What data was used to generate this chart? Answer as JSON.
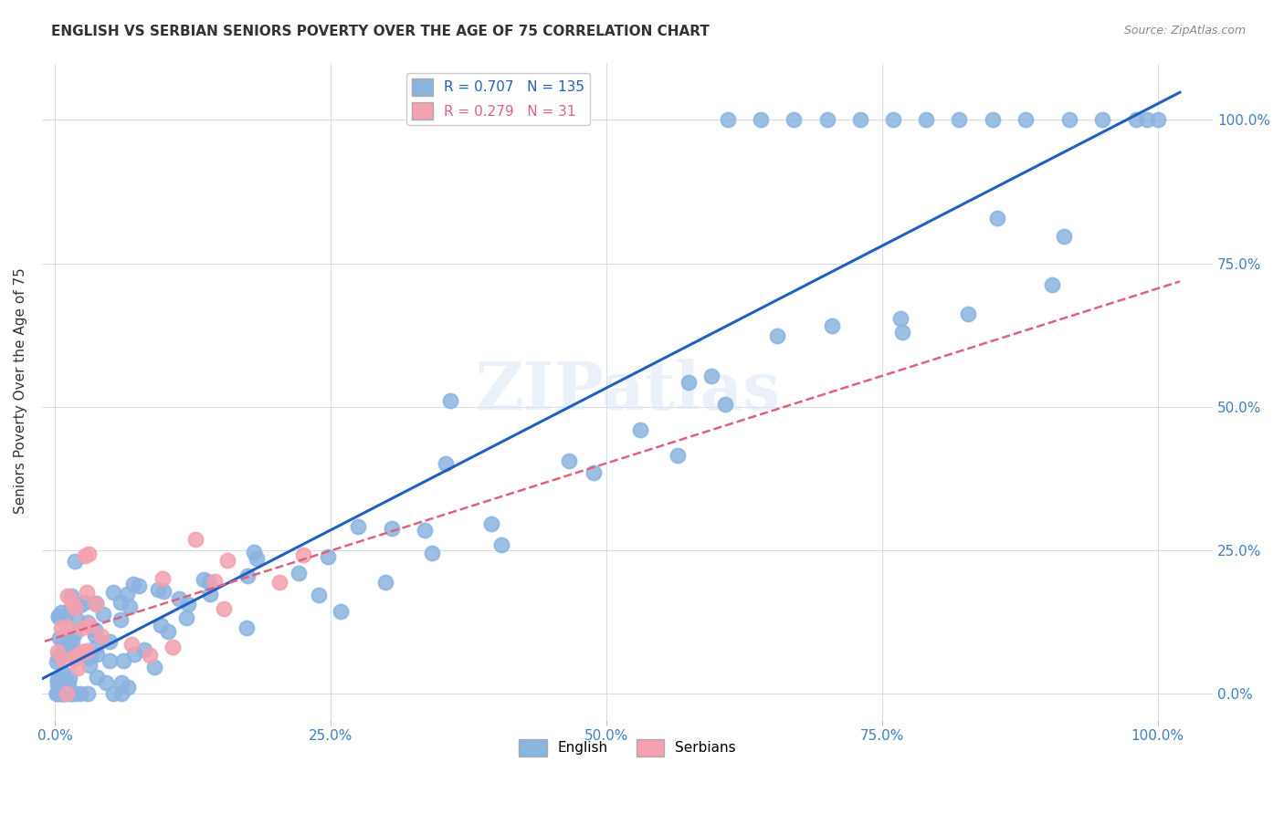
{
  "title": "ENGLISH VS SERBIAN SENIORS POVERTY OVER THE AGE OF 75 CORRELATION CHART",
  "source": "Source: ZipAtlas.com",
  "ylabel": "Seniors Poverty Over the Age of 75",
  "english_R": 0.707,
  "english_N": 135,
  "serbian_R": 0.279,
  "serbian_N": 31,
  "english_color": "#8cb4e0",
  "serbian_color": "#f4a0b0",
  "english_line_color": "#2060c0",
  "serbian_line_color": "#e06080",
  "xtick_labels": [
    "0.0%",
    "25.0%",
    "50.0%",
    "75.0%",
    "100.0%"
  ],
  "ytick_labels": [
    "0.0%",
    "25.0%",
    "50.0%",
    "75.0%",
    "100.0%"
  ],
  "xtick_vals": [
    0.0,
    0.25,
    0.5,
    0.75,
    1.0
  ],
  "ytick_vals": [
    0.0,
    0.25,
    0.5,
    0.75,
    1.0
  ]
}
